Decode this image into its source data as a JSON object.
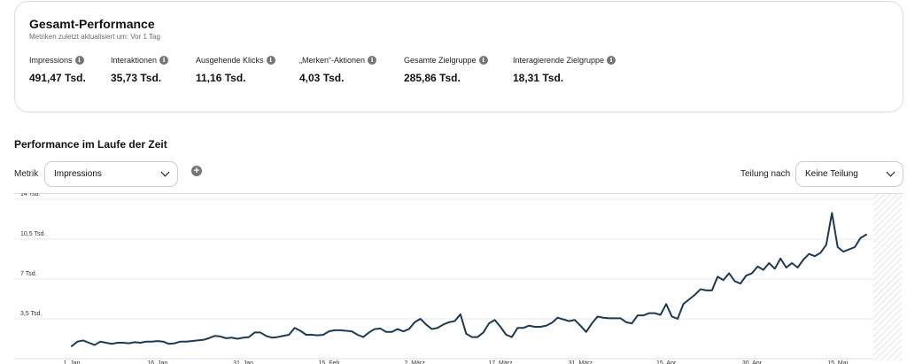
{
  "overview": {
    "title": "Gesamt-Performance",
    "subtitle": "Metriken zuletzt aktualisiert um: Vor 1 Tag",
    "metrics": [
      {
        "label": "Impressions",
        "value": "491,47 Tsd."
      },
      {
        "label": "Interaktionen",
        "value": "35,73 Tsd."
      },
      {
        "label": "Ausgehende Klicks",
        "value": "11,16 Tsd."
      },
      {
        "label": "„Merken“-Aktionen",
        "value": "4,03 Tsd."
      },
      {
        "label": "Gesamte Zielgruppe",
        "value": "285,86 Tsd."
      },
      {
        "label": "Interagierende Zielgruppe",
        "value": "18,31 Tsd."
      }
    ]
  },
  "timeline": {
    "title": "Performance im Laufe der Zeit",
    "metric_label": "Metrik",
    "metric_select": "Impressions",
    "split_label": "Teilung nach",
    "split_select": "Keine Teilung"
  },
  "icons": {
    "info": "info-icon",
    "add": "add-icon",
    "chevron": "chevron-down-icon"
  },
  "colors": {
    "line": "#1e3a52",
    "grid": "#e9e9e9",
    "hatch": "#e3e3e3"
  },
  "chart_data": {
    "type": "line",
    "x_start": "1. Jan",
    "x_end": "23. Mai",
    "ylim": [
      0,
      14000
    ],
    "yticks": [
      {
        "value": 3500,
        "label": "3,5 Tsd."
      },
      {
        "value": 7000,
        "label": "7 Tsd."
      },
      {
        "value": 10500,
        "label": "10,5 Tsd."
      },
      {
        "value": 14000,
        "label": "14 Tsd."
      }
    ],
    "xticks": [
      {
        "day": 1,
        "label": "1. Jan"
      },
      {
        "day": 16,
        "label": "16. Jan"
      },
      {
        "day": 31,
        "label": "31. Jan"
      },
      {
        "day": 46,
        "label": "15. Feb"
      },
      {
        "day": 61,
        "label": "2. März"
      },
      {
        "day": 76,
        "label": "17. März"
      },
      {
        "day": 90,
        "label": "31. März"
      },
      {
        "day": 105,
        "label": "15. Apr"
      },
      {
        "day": 120,
        "label": "30. Apr"
      },
      {
        "day": 135,
        "label": "15. Mai"
      }
    ],
    "series": [
      {
        "values": [
          1100,
          1500,
          1600,
          1400,
          1200,
          1500,
          1400,
          1300,
          1400,
          1400,
          1350,
          1450,
          1400,
          1500,
          1500,
          1550,
          1500,
          1300,
          1350,
          1500,
          1500,
          1550,
          1600,
          1650,
          1800,
          2000,
          1950,
          1800,
          1850,
          1750,
          1850,
          1900,
          2300,
          2300,
          2000,
          1850,
          1900,
          2000,
          2100,
          2700,
          2450,
          2100,
          2100,
          2050,
          2100,
          2400,
          2500,
          2500,
          2450,
          2400,
          2100,
          1900,
          2300,
          2600,
          2650,
          2350,
          2350,
          2600,
          2400,
          2600,
          3200,
          3500,
          3000,
          2600,
          2700,
          3000,
          3200,
          3300,
          3900,
          2200,
          1900,
          1900,
          2300,
          3100,
          3400,
          2800,
          2100,
          1900,
          2700,
          2700,
          2900,
          2800,
          2800,
          2900,
          3150,
          3600,
          3450,
          3300,
          3400,
          2900,
          2350,
          3100,
          3700,
          3600,
          3550,
          3550,
          3550,
          3200,
          3100,
          3800,
          3800,
          4000,
          4000,
          3850,
          4800,
          3700,
          3500,
          4800,
          5200,
          5600,
          6100,
          6000,
          6000,
          7200,
          6900,
          7500,
          6800,
          6600,
          7300,
          7500,
          8100,
          7800,
          8400,
          7900,
          8800,
          8000,
          8400,
          8000,
          8700,
          9200,
          9000,
          9300,
          10000,
          12800,
          9800,
          9400,
          9600,
          9800,
          10600,
          10900
        ]
      }
    ]
  }
}
